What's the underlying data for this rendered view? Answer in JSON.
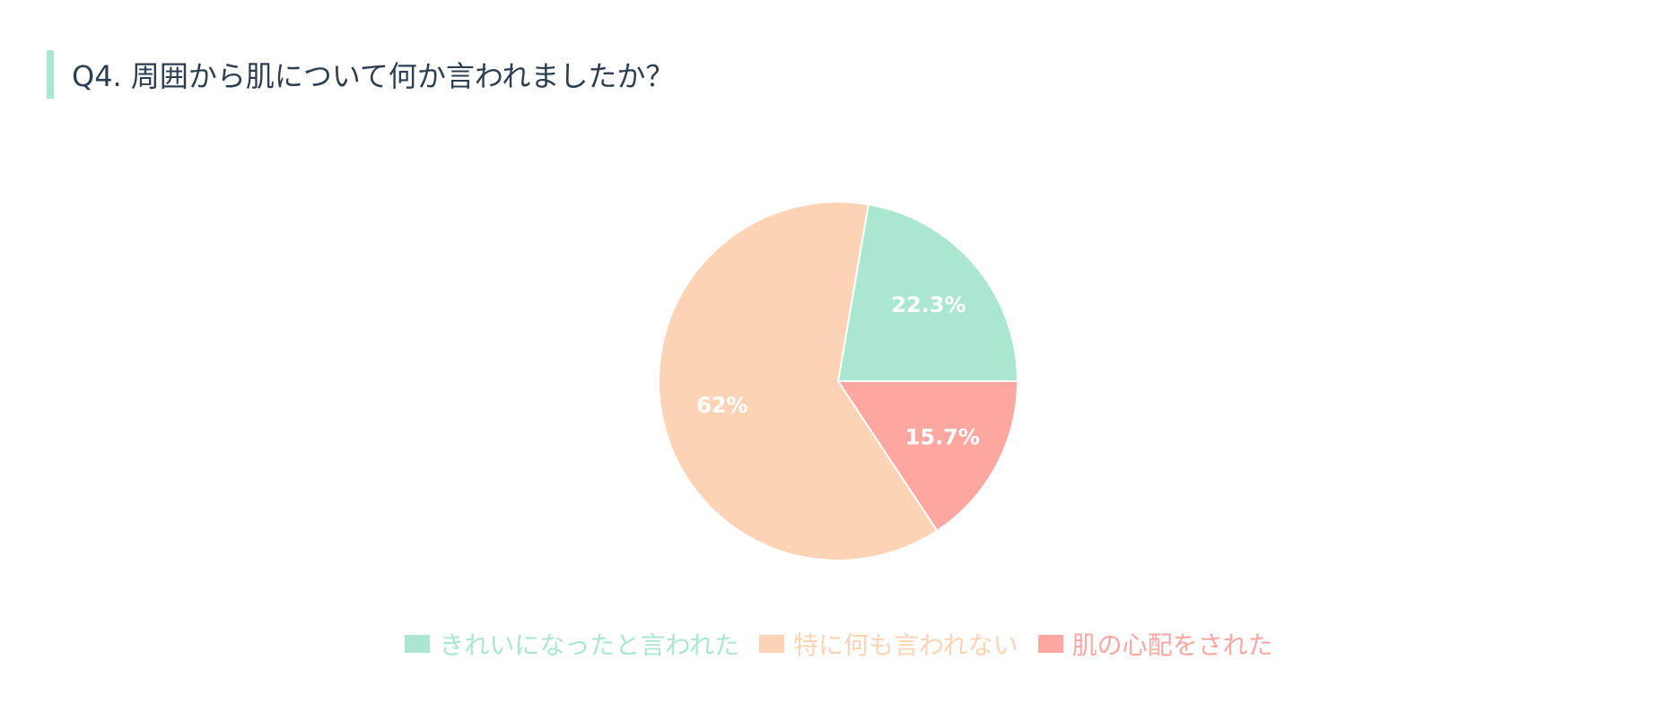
{
  "title": "Q4. 周囲から肌について何か言われましたか？",
  "colors": {
    "accent_bar": "#abe7d0",
    "title_text": "#2c3e50"
  },
  "chart_data": {
    "type": "pie",
    "title": "Q4. 周囲から肌について何か言われましたか？",
    "categories": [
      "きれいになったと言われた",
      "特に何も言われない",
      "肌の心配をされた"
    ],
    "values": [
      22.3,
      62,
      15.7
    ],
    "labels": [
      "22.3%",
      "62%",
      "15.7%"
    ],
    "colors": [
      "#abe7d0",
      "#fdd3b5",
      "#fea7a1"
    ],
    "legend_position": "bottom-center",
    "start": "3 o'clock, counter-clockwise"
  }
}
